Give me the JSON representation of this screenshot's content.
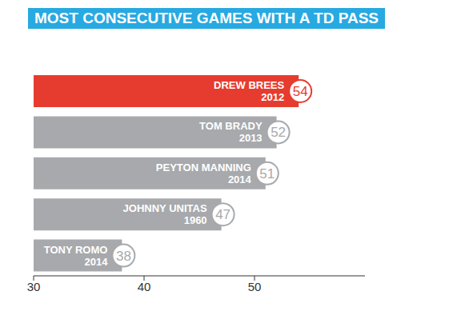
{
  "chart_data": {
    "type": "bar",
    "orientation": "horizontal",
    "title": "MOST CONSECUTIVE GAMES WITH A TD PASS",
    "categories": [
      "DREW BREES 2012",
      "TOM BRADY 2013",
      "PEYTON MANNING 2014",
      "JOHNNY UNITAS 1960",
      "TONY ROMO 2014"
    ],
    "values": [
      54,
      52,
      51,
      47,
      38
    ],
    "colors": [
      "#e63c2f",
      "#a7a9ac",
      "#a7a9ac",
      "#a7a9ac",
      "#a7a9ac"
    ],
    "xlim": [
      30,
      60
    ],
    "xticks": [
      30,
      40,
      50
    ],
    "data_labels": true,
    "tick_labels": "x",
    "grid": false
  }
}
